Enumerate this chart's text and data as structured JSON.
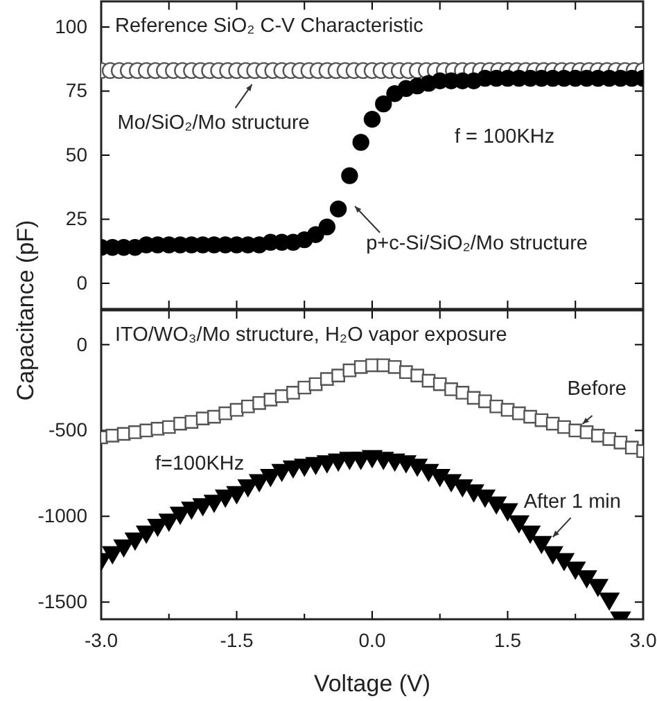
{
  "chart_data": [
    {
      "type": "scatter",
      "ylabel": "Capacitance (pF)",
      "xlim": [
        -3,
        3
      ],
      "ylim": [
        -10,
        110
      ],
      "xticks": [
        -3,
        -2.25,
        -1.5,
        -0.75,
        0,
        0.75,
        1.5,
        2.25,
        3
      ],
      "yticks": [
        0,
        25,
        50,
        75,
        100
      ],
      "tick_labels": "y",
      "annotations": [
        "Reference SiO₂ C-V Characteristic",
        {
          "text": "Mo/SiO₂/Mo structure",
          "x": -1.3,
          "y": 83
        },
        "f = 100KHz",
        {
          "text": "p+c-Si/SiO₂/Mo structure",
          "x": -0.375,
          "y": 29
        }
      ],
      "series": [
        {
          "color": "#555555",
          "marker": "circle",
          "x": [
            -3,
            -2.9,
            -2.8,
            -2.7,
            -2.6,
            -2.5,
            -2.4,
            -2.3,
            -2.2,
            -2.1,
            -2,
            -1.9,
            -1.8,
            -1.7,
            -1.6,
            -1.5,
            -1.4,
            -1.3,
            -1.2,
            -1.1,
            -1,
            -0.9,
            -0.8,
            -0.7,
            -0.6,
            -0.5,
            -0.4,
            -0.3,
            -0.2,
            -0.1,
            0,
            0.1,
            0.2,
            0.3,
            0.4,
            0.5,
            0.6,
            0.7,
            0.8,
            0.9,
            1,
            1.1,
            1.2,
            1.3,
            1.4,
            1.5,
            1.6,
            1.7,
            1.8,
            1.9,
            2,
            2.1,
            2.2,
            2.3,
            2.4,
            2.5,
            2.6,
            2.7,
            2.8,
            2.9,
            3
          ],
          "values": [
            83,
            83,
            83,
            83,
            83,
            83,
            83,
            83,
            83,
            83,
            83,
            83,
            83,
            83,
            83,
            83,
            83,
            83,
            83,
            83,
            83,
            83,
            83,
            83,
            83,
            83,
            83,
            83,
            83,
            83,
            83,
            83,
            83,
            83,
            83,
            83,
            83,
            83,
            83,
            83,
            83,
            83,
            83,
            83,
            83,
            83,
            83,
            83,
            83,
            83,
            83,
            83,
            83,
            83,
            83,
            83,
            83,
            83,
            83,
            83,
            83
          ]
        },
        {
          "color": "#000000",
          "marker": "circle",
          "x": [
            -3,
            -2.875,
            -2.75,
            -2.625,
            -2.5,
            -2.375,
            -2.25,
            -2.125,
            -2,
            -1.875,
            -1.75,
            -1.625,
            -1.5,
            -1.375,
            -1.25,
            -1.125,
            -1,
            -0.875,
            -0.75,
            -0.625,
            -0.5,
            -0.375,
            -0.25,
            -0.125,
            0,
            0.125,
            0.25,
            0.375,
            0.5,
            0.625,
            0.75,
            0.875,
            1,
            1.125,
            1.25,
            1.375,
            1.5,
            1.625,
            1.75,
            1.875,
            2,
            2.125,
            2.25,
            2.375,
            2.5,
            2.625,
            2.75,
            2.875,
            3
          ],
          "values": [
            14,
            14,
            14,
            14,
            15,
            15,
            15,
            15,
            15,
            15,
            15,
            15,
            15,
            15,
            15,
            16,
            16,
            16,
            17,
            19,
            22,
            29,
            42,
            55,
            64,
            70,
            74,
            76,
            77,
            78,
            79,
            79,
            79,
            79,
            80,
            80,
            80,
            80,
            80,
            80,
            80,
            80,
            80,
            80,
            80,
            80,
            80,
            80,
            80
          ]
        }
      ]
    },
    {
      "type": "scatter",
      "xlabel": "Voltage (V)",
      "xlim": [
        -3,
        3
      ],
      "ylim": [
        -1600,
        200
      ],
      "xticks": [
        {
          "value": -3,
          "label": "-3.0"
        },
        {
          "value": -2.25,
          "label": null
        },
        {
          "value": -1.5,
          "label": "-1.5"
        },
        {
          "value": -0.75,
          "label": null
        },
        {
          "value": 0,
          "label": "0.0"
        },
        {
          "value": 0.75,
          "label": null
        },
        {
          "value": 1.5,
          "label": "1.5"
        },
        {
          "value": 2.25,
          "label": null
        },
        {
          "value": 3,
          "label": "3.0"
        }
      ],
      "yticks": [
        0,
        -500,
        -1000,
        -1500
      ],
      "annotations": [
        "ITO/WO₃/Mo structure, H₂O vapor exposure",
        {
          "text": "Before",
          "x": 2.375,
          "y": -510
        },
        "f=100KHz",
        {
          "text": "After 1 min",
          "x": 2.0,
          "y": -1210
        }
      ],
      "series": [
        {
          "color": "#555555",
          "marker": "square",
          "x": [
            -3,
            -2.875,
            -2.75,
            -2.625,
            -2.5,
            -2.375,
            -2.25,
            -2.125,
            -2,
            -1.875,
            -1.75,
            -1.625,
            -1.5,
            -1.375,
            -1.25,
            -1.125,
            -1,
            -0.875,
            -0.75,
            -0.625,
            -0.5,
            -0.375,
            -0.25,
            -0.125,
            0,
            0.125,
            0.25,
            0.375,
            0.5,
            0.625,
            0.75,
            0.875,
            1,
            1.125,
            1.25,
            1.375,
            1.5,
            1.625,
            1.75,
            1.875,
            2,
            2.125,
            2.25,
            2.375,
            2.5,
            2.625,
            2.75,
            2.875,
            3
          ],
          "values": [
            -540,
            -530,
            -520,
            -510,
            -500,
            -490,
            -480,
            -460,
            -450,
            -430,
            -420,
            -400,
            -380,
            -360,
            -340,
            -320,
            -300,
            -280,
            -250,
            -230,
            -200,
            -180,
            -150,
            -130,
            -120,
            -120,
            -130,
            -160,
            -180,
            -210,
            -230,
            -260,
            -280,
            -310,
            -330,
            -360,
            -380,
            -400,
            -420,
            -440,
            -460,
            -480,
            -500,
            -510,
            -530,
            -550,
            -570,
            -600,
            -620
          ]
        },
        {
          "color": "#000000",
          "marker": "triangle",
          "x": [
            -3,
            -2.875,
            -2.75,
            -2.625,
            -2.5,
            -2.375,
            -2.25,
            -2.125,
            -2,
            -1.875,
            -1.75,
            -1.625,
            -1.5,
            -1.375,
            -1.25,
            -1.125,
            -1,
            -0.875,
            -0.75,
            -0.625,
            -0.5,
            -0.375,
            -0.25,
            -0.125,
            0,
            0.125,
            0.25,
            0.375,
            0.5,
            0.625,
            0.75,
            0.875,
            1,
            1.125,
            1.25,
            1.375,
            1.5,
            1.625,
            1.75,
            1.875,
            2,
            2.125,
            2.25,
            2.375,
            2.5,
            2.625,
            2.75
          ],
          "values": [
            -1250,
            -1210,
            -1170,
            -1130,
            -1090,
            -1050,
            -1020,
            -980,
            -950,
            -930,
            -910,
            -880,
            -860,
            -820,
            -790,
            -760,
            -730,
            -710,
            -700,
            -690,
            -680,
            -670,
            -660,
            -660,
            -650,
            -660,
            -670,
            -680,
            -700,
            -730,
            -760,
            -790,
            -820,
            -850,
            -880,
            -920,
            -960,
            -1030,
            -1090,
            -1150,
            -1210,
            -1250,
            -1300,
            -1350,
            -1400,
            -1480,
            -1590
          ]
        }
      ]
    }
  ]
}
